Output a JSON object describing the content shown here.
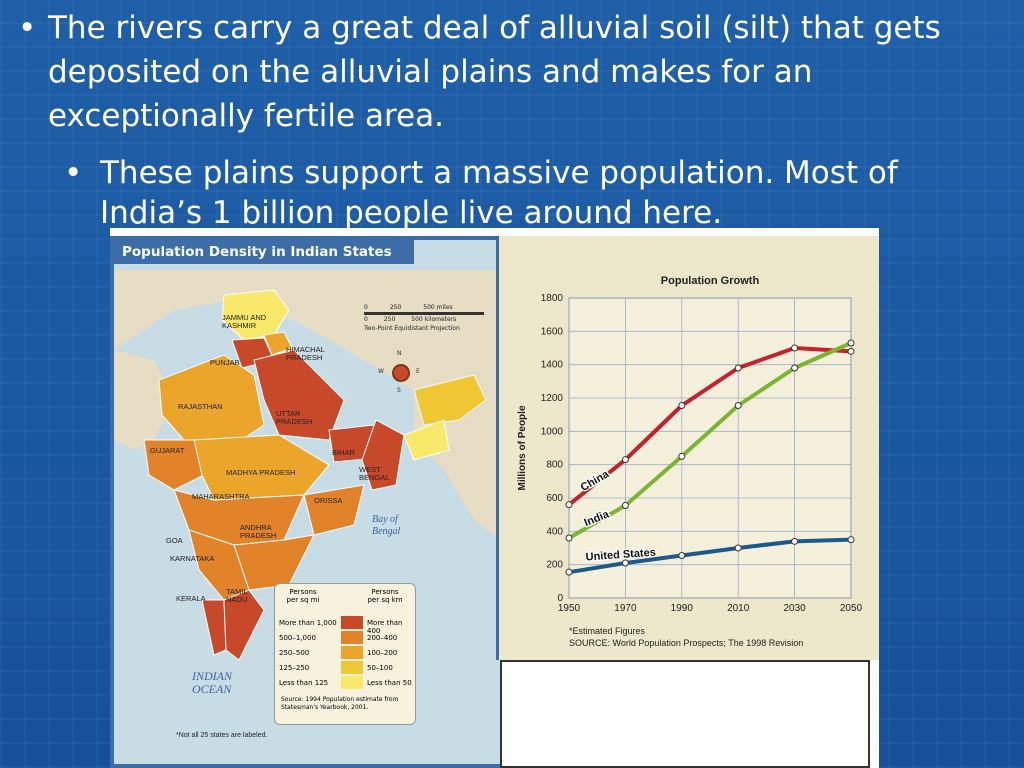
{
  "slide": {
    "bullet1": "The rivers carry a great deal of alluvial soil (silt) that gets deposited on the alluvial plains and makes for an exceptionally fertile area.",
    "bullet2": "These plains support a massive population.  Most of India’s 1 billion people live around here.",
    "bullet_glyph": "•"
  },
  "map": {
    "title": "Population Density in Indian States",
    "scale_miles": [
      "0",
      "250",
      "500 miles"
    ],
    "scale_km": [
      "0",
      "250",
      "500 kilometers"
    ],
    "projection": "Two-Point Equidistant Projection",
    "compass": [
      "N",
      "E",
      "W",
      "S"
    ],
    "states": [
      "JAMMU AND KASHMIR",
      "HIMACHAL PRADESH",
      "PUNJAB",
      "RAJASTHAN",
      "UTTAR PRADESH",
      "BIHAR",
      "GUJARAT",
      "MADHYA PRADESH",
      "WEST BENGAL",
      "MAHARASHTRA",
      "ORISSA",
      "GOA",
      "ANDHRA PRADESH",
      "KARNATAKA",
      "KERALA",
      "TAMIL NADU"
    ],
    "water": [
      "Bay of Bengal",
      "INDIAN OCEAN"
    ],
    "legend": {
      "col1_header": "Persons per sq mi",
      "col2_header": "Persons per sq km",
      "rows": [
        {
          "mi": "More than 1,000",
          "km": "More than 400",
          "color": "#c8482a"
        },
        {
          "mi": "500–1,000",
          "km": "200–400",
          "color": "#e2832a"
        },
        {
          "mi": "250–500",
          "km": "100–200",
          "color": "#eaa52a"
        },
        {
          "mi": "125–250",
          "km": "50–100",
          "color": "#f1c734"
        },
        {
          "mi": "Less than 125",
          "km": "Less than 50",
          "color": "#f8e96a"
        }
      ],
      "source": "Source: 1994 Population estimate from Statesman's Yearbook, 2001."
    },
    "footnote": "*Not all 25 states are labeled."
  },
  "chart_data": {
    "type": "line",
    "title": "Population Growth",
    "ylabel": "Millions of People",
    "xlabel": "",
    "x": [
      1950,
      1970,
      1990,
      2010,
      2030,
      2050
    ],
    "ylim": [
      0,
      1800
    ],
    "yticks": [
      0,
      200,
      400,
      600,
      800,
      1000,
      1200,
      1400,
      1600,
      1800
    ],
    "grid": true,
    "series": [
      {
        "name": "China",
        "color": "#c8202a",
        "values": [
          560,
          830,
          1155,
          1380,
          1500,
          1480
        ]
      },
      {
        "name": "India",
        "color": "#7cb530",
        "values": [
          360,
          555,
          850,
          1155,
          1380,
          1530
        ]
      },
      {
        "name": "United States",
        "color": "#1c5a8c",
        "values": [
          155,
          210,
          255,
          300,
          340,
          350
        ]
      }
    ],
    "notes": [
      "*Estimated Figures",
      "SOURCE: World Population Prospects; The 1998 Revision"
    ]
  }
}
